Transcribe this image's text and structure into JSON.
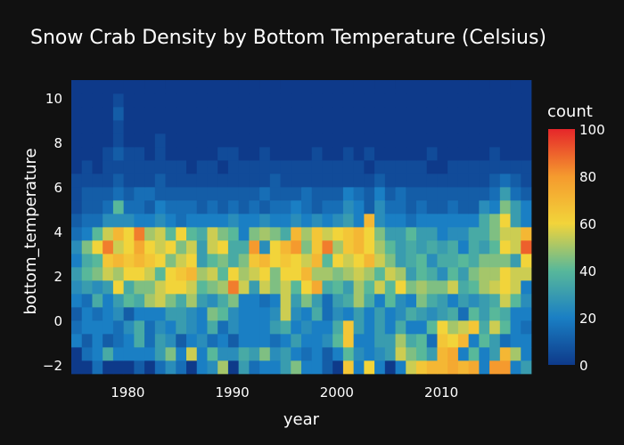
{
  "chart_data": {
    "type": "heatmap",
    "title": "Snow Crab Density by Bottom Temperature (Celsius)",
    "xlabel": "year",
    "ylabel": "bottom_temperature",
    "x_start_year": 1975,
    "x_end_year": 2018,
    "y_bin_start": -2.4,
    "y_bin_step": 0.6,
    "xlim": [
      1974.6,
      2018.6
    ],
    "ylim": [
      -2.4,
      10.4
    ],
    "x_ticks": [
      {
        "value": 1980,
        "label": "1980"
      },
      {
        "value": 1990,
        "label": "1990"
      },
      {
        "value": 2000,
        "label": "2000"
      },
      {
        "value": 2010,
        "label": "2010"
      }
    ],
    "y_ticks": [
      {
        "value": -2,
        "label": "−2"
      },
      {
        "value": 0,
        "label": "0"
      },
      {
        "value": 2,
        "label": "2"
      },
      {
        "value": 4,
        "label": "4"
      },
      {
        "value": 6,
        "label": "6"
      },
      {
        "value": 8,
        "label": "8"
      },
      {
        "value": 10,
        "label": "10"
      }
    ],
    "colorbar": {
      "title": "count",
      "min": 0,
      "max": 100,
      "ticks": [
        {
          "value": 0,
          "label": "0"
        },
        {
          "value": 20,
          "label": "20"
        },
        {
          "value": 40,
          "label": "40"
        },
        {
          "value": 60,
          "label": "60"
        },
        {
          "value": 80,
          "label": "80"
        },
        {
          "value": 100,
          "label": "100"
        }
      ],
      "colorscale": [
        [
          0.0,
          "#0e3a8a"
        ],
        [
          0.2,
          "#1a7fc4"
        ],
        [
          0.4,
          "#58b89a"
        ],
        [
          0.6,
          "#f2d43a"
        ],
        [
          0.8,
          "#f59a2e"
        ],
        [
          1.0,
          "#e5262a"
        ]
      ]
    },
    "background_color": "#0d3a86",
    "counts_rows_bottom_to_top": [
      "0 0 15 0 0 0 10 0 15 25 15 0 20 25 50 0 30 15 20 20 30 45 20 20 10 0 65 20 60 20 0 20 55 65 70 70 75 70 75 20 80 80 20 30",
      "0 15 20 35 20 20 20 20 30 45 20 55 20 40 25 25 35 30 45 25 30 20 15 20 10 20 40 25 20 25 30 55 45 40 30 70 75 20 40 20 30 70 50 20",
      "20 10 20 10 15 20 35 15 30 25 10 20 25 15 20 10 20 20 20 15 20 30 20 20 25 40 65 20 20 30 30 50 35 40 15 65 60 70 20 40 30 15 20 20",
      "15 20 20 20 15 25 35 15 25 20 30 25 20 35 15 25 20 20 20 30 35 20 25 20 20 35 65 30 20 30 20 35 20 20 40 60 50 55 65 35 55 40 20 15",
      "10 20 15 20 25 10 20 20 20 30 30 25 20 45 40 25 20 20 20 25 55 25 20 35 15 25 20 30 20 30 20 25 35 30 25 30 35 15 40 30 40 35 20 20",
      "20 15 35 20 30 40 35 50 55 45 35 50 30 25 35 45 20 20 15 20 55 30 45 30 15 30 35 50 35 20 40 25 20 45 35 30 20 30 25 30 35 55 40 25",
      "25 30 25 30 60 35 45 45 55 60 60 55 40 45 50 85 55 30 55 45 55 40 60 75 35 40 30 50 40 55 40 60 45 50 45 45 55 35 40 50 55 60 55 20",
      "30 40 45 55 50 60 60 55 40 60 65 70 50 55 40 60 50 55 60 45 60 60 70 50 50 45 50 55 50 40 55 50 30 40 35 25 40 30 45 50 50 60 55 55",
      "20 35 40 65 70 65 70 65 60 45 55 60 30 40 45 35 45 65 70 60 65 60 55 70 40 60 55 60 70 55 45 30 35 40 25 35 35 40 35 45 45 45 30 60",
      "25 45 60 85 55 60 75 60 55 60 45 55 30 55 60 35 35 80 25 60 70 80 45 65 85 50 65 70 60 50 40 30 35 30 35 30 35 20 35 30 40 60 55 90",
      "15 20 40 55 70 60 85 50 55 40 60 40 35 55 45 40 20 45 50 45 35 70 50 65 55 60 65 70 60 45 30 30 40 30 30 20 25 25 35 35 45 55 55 70",
      "10 15 15 25 25 25 20 20 25 20 15 20 20 20 20 25 20 20 25 20 20 25 20 25 20 25 30 20 70 25 20 20 15 20 20 20 20 20 20 35 45 60 30 20",
      "5 10 10 15 40 15 15 10 20 15 15 15 10 15 10 15 10 15 10 15 15 20 15 10 15 15 25 20 10 25 15 15 10 15 10 10 15 10 10 25 20 45 30 20",
      "5 10 10 10 15 10 15 15 10 10 10 10 10 10 10 10 10 10 15 10 10 10 15 10 10 10 20 15 10 20 10 15 10 10 10 10 10 10 10 10 15 30 15 10",
      "5 5 5 5 10 5 5 5 10 5 5 5 5 5 5 5 5 5 5 10 5 5 5 5 5 5 5 5 5 10 5 5 5 5 5 5 5 5 5 5 10 15 10 5",
      "0 5 0 5 5 5 5 5 5 5 5 0 5 5 0 5 5 5 5 5 5 5 5 5 5 5 5 5 0 5 5 5 5 5 0 0 5 5 5 5 5 5 5 5",
      "0 0 0 5 10 5 5 0 5 0 0 0 0 0 5 5 0 0 5 0 0 0 0 5 0 0 5 0 5 0 0 0 0 0 5 0 0 0 0 0 5 0 0 0",
      "0 0 0 0 5 0 0 0 5 0 0 0 0 0 0 0 0 0 0 0 0 0 0 0 0 0 0 0 0 0 0 0 0 0 0 0 0 0 0 0 0 0 0 0",
      "0 0 0 0 5 0 0 0 0 0 0 0 0 0 0 0 0 0 0 0 0 0 0 0 0 0 0 0 0 0 0 0 0 0 0 0 0 0 0 0 0 0 0 0",
      "0 0 0 0 10 0 0 0 0 0 0 0 0 0 0 0 0 0 0 0 0 0 0 0 0 0 0 0 0 0 0 0 0 0 0 0 0 0 0 0 0 0 0 0",
      "0 0 0 0 5 0 0 0 0 0 0 0 0 0 0 0 0 0 0 0 0 0 0 0 0 0 0 0 0 0 0 0 0 0 0 0 0 0 0 0 0 0 0 0",
      "0 0 0 0 0 0 0 0 0 0 0 0 0 0 0 0 0 0 0 0 0 0 0 0 0 0 0 0 0 0 0 0 0 0 0 0 0 0 0 0 0 0 0 0"
    ]
  }
}
